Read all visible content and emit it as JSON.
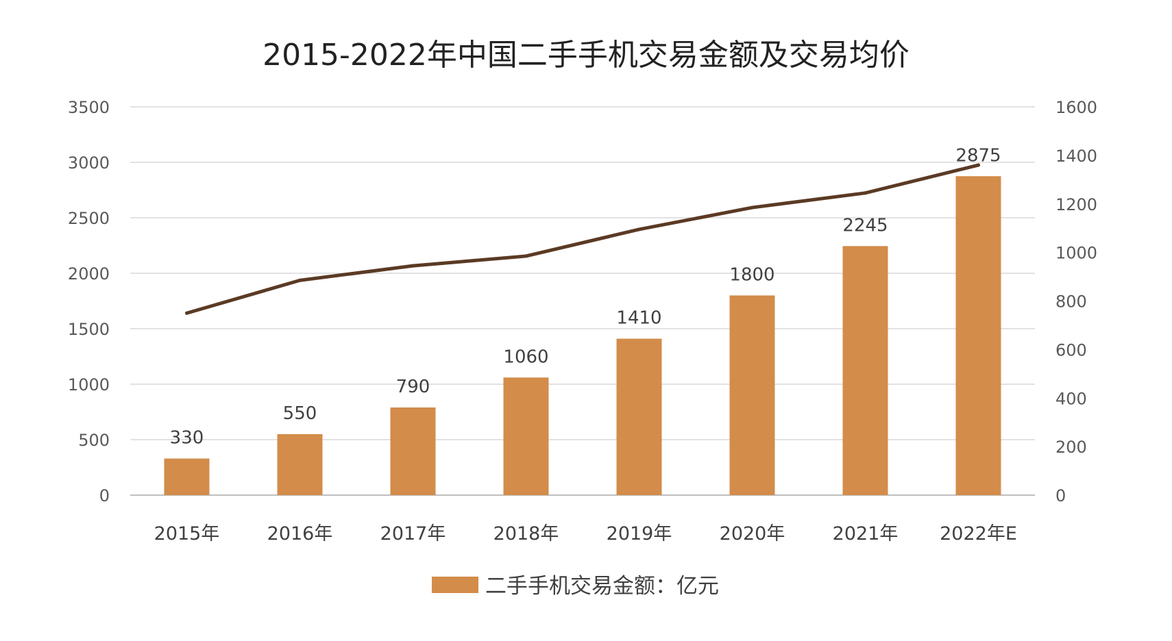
{
  "chart_data": {
    "type": "bar",
    "title": "2015-2022年中国二手手机交易金额及交易均价",
    "categories": [
      "2015年",
      "2016年",
      "2017年",
      "2018年",
      "2019年",
      "2020年",
      "2021年",
      "2022年E"
    ],
    "series": [
      {
        "name": "二手手机交易金额：亿元",
        "type": "bar",
        "axis": "left",
        "values": [
          330,
          550,
          790,
          1060,
          1410,
          1800,
          2245,
          2875
        ],
        "data_labels": [
          "330",
          "550",
          "790",
          "1060",
          "1410",
          "1800",
          "2245",
          "2875"
        ],
        "color": "#d38c4a"
      },
      {
        "type": "line",
        "axis": "right",
        "values": [
          750,
          885,
          945,
          985,
          1095,
          1185,
          1245,
          1360
        ],
        "color": "#5b3a24"
      }
    ],
    "y_left": {
      "ylim": [
        0,
        3500
      ],
      "ticks": [
        "0",
        "500",
        "1000",
        "1500",
        "2000",
        "2500",
        "3000",
        "3500"
      ]
    },
    "y_right": {
      "ylim": [
        0,
        1600
      ],
      "ticks": [
        "0",
        "200",
        "400",
        "600",
        "800",
        "1000",
        "1200",
        "1400",
        "1600"
      ]
    },
    "grid": true,
    "legend_position": "bottom-center"
  }
}
